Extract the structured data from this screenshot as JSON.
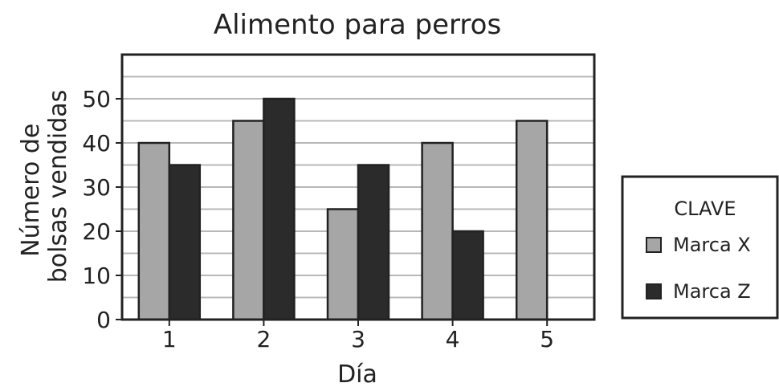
{
  "chart_data": {
    "type": "bar",
    "title": "Alimento para perros",
    "xlabel": "Día",
    "ylabel": [
      "Número de",
      "bolsas vendidas"
    ],
    "categories": [
      "1",
      "2",
      "3",
      "4",
      "5"
    ],
    "series": [
      {
        "name": "Marca X",
        "values": [
          40,
          45,
          25,
          40,
          45
        ],
        "color": "#a6a6a6"
      },
      {
        "name": "Marca Z",
        "values": [
          35,
          50,
          35,
          20,
          null
        ],
        "color": "#2b2b2b"
      }
    ],
    "ylim": [
      0,
      60
    ],
    "yticks": [
      0,
      10,
      20,
      30,
      40,
      50
    ],
    "grid_step": 5,
    "grid": true,
    "legend": {
      "title": "CLAVE",
      "placement": "right"
    }
  }
}
